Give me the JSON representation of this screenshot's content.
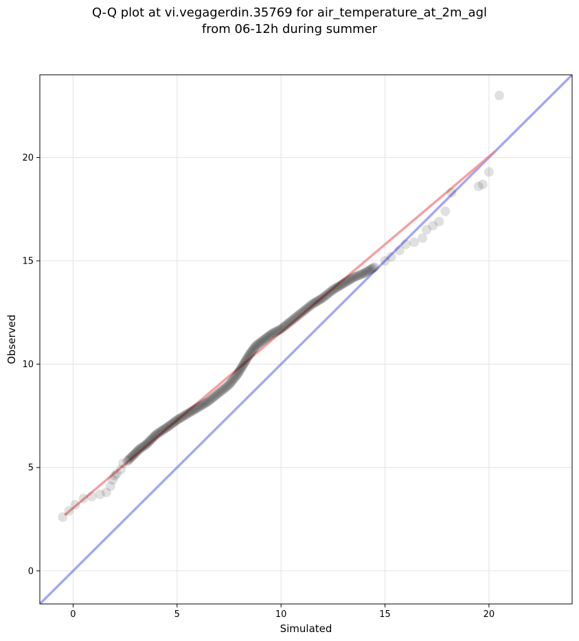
{
  "chart_data": {
    "type": "scatter",
    "title": [
      "Q-Q plot at vi.vegagerdin.35769 for air_temperature_at_2m_agl",
      "from 06-12h during summer"
    ],
    "xlabel": "Simulated",
    "ylabel": "Observed",
    "xlim": [
      -1.6,
      24.0
    ],
    "ylim": [
      -1.6,
      24.0
    ],
    "xticks": [
      0,
      5,
      10,
      15,
      20
    ],
    "yticks": [
      0,
      5,
      10,
      15,
      20
    ],
    "grid": true,
    "colors": {
      "points": "#000000",
      "fit_line": "#f08080",
      "identity_line": "#6b6bee"
    },
    "points": [
      [
        -0.5,
        2.6
      ],
      [
        -0.2,
        2.9
      ],
      [
        0.1,
        3.2
      ],
      [
        0.5,
        3.5
      ],
      [
        0.9,
        3.6
      ],
      [
        1.3,
        3.7
      ],
      [
        1.6,
        3.8
      ],
      [
        1.8,
        4.1
      ],
      [
        1.9,
        4.4
      ],
      [
        2.0,
        4.6
      ],
      [
        2.1,
        4.7
      ],
      [
        2.3,
        4.9
      ],
      [
        2.4,
        5.2
      ],
      [
        2.6,
        5.3
      ],
      [
        2.8,
        5.5
      ],
      [
        3.0,
        5.7
      ],
      [
        3.2,
        5.9
      ],
      [
        3.5,
        6.1
      ],
      [
        3.7,
        6.3
      ],
      [
        4.0,
        6.6
      ],
      [
        4.3,
        6.8
      ],
      [
        4.6,
        7.0
      ],
      [
        5.0,
        7.3
      ],
      [
        5.5,
        7.6
      ],
      [
        6.0,
        7.9
      ],
      [
        6.5,
        8.2
      ],
      [
        7.0,
        8.6
      ],
      [
        7.5,
        9.0
      ],
      [
        7.9,
        9.5
      ],
      [
        8.2,
        10.0
      ],
      [
        8.5,
        10.5
      ],
      [
        8.8,
        10.9
      ],
      [
        9.2,
        11.2
      ],
      [
        9.6,
        11.5
      ],
      [
        10.0,
        11.7
      ],
      [
        10.5,
        12.1
      ],
      [
        11.0,
        12.5
      ],
      [
        11.5,
        12.9
      ],
      [
        12.0,
        13.2
      ],
      [
        12.5,
        13.6
      ],
      [
        13.0,
        13.9
      ],
      [
        13.5,
        14.2
      ],
      [
        14.0,
        14.4
      ],
      [
        14.5,
        14.7
      ],
      [
        15.0,
        15.0
      ],
      [
        15.3,
        15.2
      ],
      [
        15.7,
        15.5
      ],
      [
        16.0,
        15.8
      ],
      [
        16.4,
        15.9
      ],
      [
        16.8,
        16.1
      ],
      [
        17.0,
        16.5
      ],
      [
        17.3,
        16.7
      ],
      [
        17.6,
        16.9
      ],
      [
        17.9,
        17.4
      ],
      [
        18.2,
        18.3
      ],
      [
        19.5,
        18.6
      ],
      [
        19.7,
        18.7
      ],
      [
        20.0,
        19.3
      ],
      [
        20.5,
        23.0
      ]
    ],
    "fit_line": [
      [
        -0.4,
        2.7
      ],
      [
        20.3,
        20.3
      ]
    ],
    "identity_line": [
      [
        -1.6,
        -1.6
      ],
      [
        24.0,
        24.0
      ]
    ]
  }
}
